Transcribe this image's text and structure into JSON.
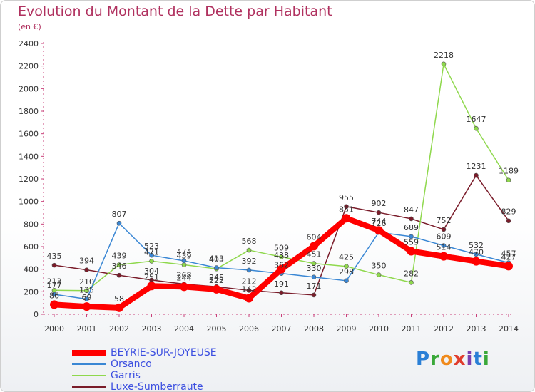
{
  "title": "Evolution du Montant de la Dette par Habitant",
  "subtitle": "(en €)",
  "logo": {
    "text": "Proxiti",
    "letters": [
      {
        "ch": "P",
        "color": "#2a7fd6"
      },
      {
        "ch": "r",
        "color": "#39a839"
      },
      {
        "ch": "o",
        "color": "#f08a1c"
      },
      {
        "ch": "x",
        "color": "#e03c2d"
      },
      {
        "ch": "i",
        "color": "#7a3fb0"
      },
      {
        "ch": "t",
        "color": "#2a7fd6"
      },
      {
        "ch": "i",
        "color": "#39a839"
      }
    ]
  },
  "chart_data": {
    "type": "line",
    "title": "Evolution du Montant de la Dette par Habitant",
    "subtitle": "(en €)",
    "x": [
      2000,
      2001,
      2002,
      2003,
      2004,
      2005,
      2006,
      2007,
      2008,
      2009,
      2010,
      2011,
      2012,
      2013,
      2014
    ],
    "ylim": [
      0,
      2400
    ],
    "yticks": [
      0,
      200,
      400,
      600,
      800,
      1000,
      1200,
      1400,
      1600,
      1800,
      2000,
      2200,
      2400
    ],
    "grid": false,
    "legend_position": "bottom-left",
    "series": [
      {
        "name": "BEYRIE-SUR-JOYEUSE",
        "color": "#ff0000",
        "values": [
          86,
          69,
          58,
          251,
          244,
          222,
          142,
          400,
          604,
          851,
          744,
          559,
          514,
          470,
          427
        ],
        "labels": [
          "86",
          "69",
          "58",
          "251",
          "244",
          "222",
          "142",
          "",
          "604",
          "851",
          "744",
          "559",
          "514",
          "470",
          "427"
        ]
      },
      {
        "name": "Orsanco",
        "color": "#3a87d4",
        "values": [
          177,
          135,
          807,
          523,
          474,
          413,
          392,
          362,
          330,
          298,
          726,
          689,
          609,
          532,
          457
        ],
        "labels": [
          "177",
          "135",
          "807",
          "523",
          "474",
          "413",
          "392",
          "",
          "330",
          "298",
          "726",
          "689",
          "609",
          "532",
          "457"
        ]
      },
      {
        "name": "Garris",
        "color": "#8fd84d",
        "values": [
          213,
          210,
          439,
          471,
          439,
          403,
          568,
          509,
          451,
          425,
          350,
          282,
          2218,
          1647,
          1189
        ],
        "labels": [
          "213",
          "210",
          "439",
          "471",
          "439",
          "403",
          "568",
          "509",
          "451",
          "425",
          "350",
          "282",
          "2218",
          "1647",
          "1189"
        ]
      },
      {
        "name": "Luxe-Sumberraute",
        "color": "#7a1c2a",
        "values": [
          435,
          394,
          346,
          304,
          268,
          245,
          212,
          191,
          171,
          955,
          902,
          847,
          752,
          1231,
          829
        ],
        "labels": [
          "435",
          "394",
          "346",
          "304",
          "268",
          "245",
          "212",
          "191",
          "171",
          "955",
          "902",
          "847",
          "752",
          "1231",
          "829"
        ]
      }
    ],
    "extra_labels": [
      "438",
      "362"
    ]
  }
}
